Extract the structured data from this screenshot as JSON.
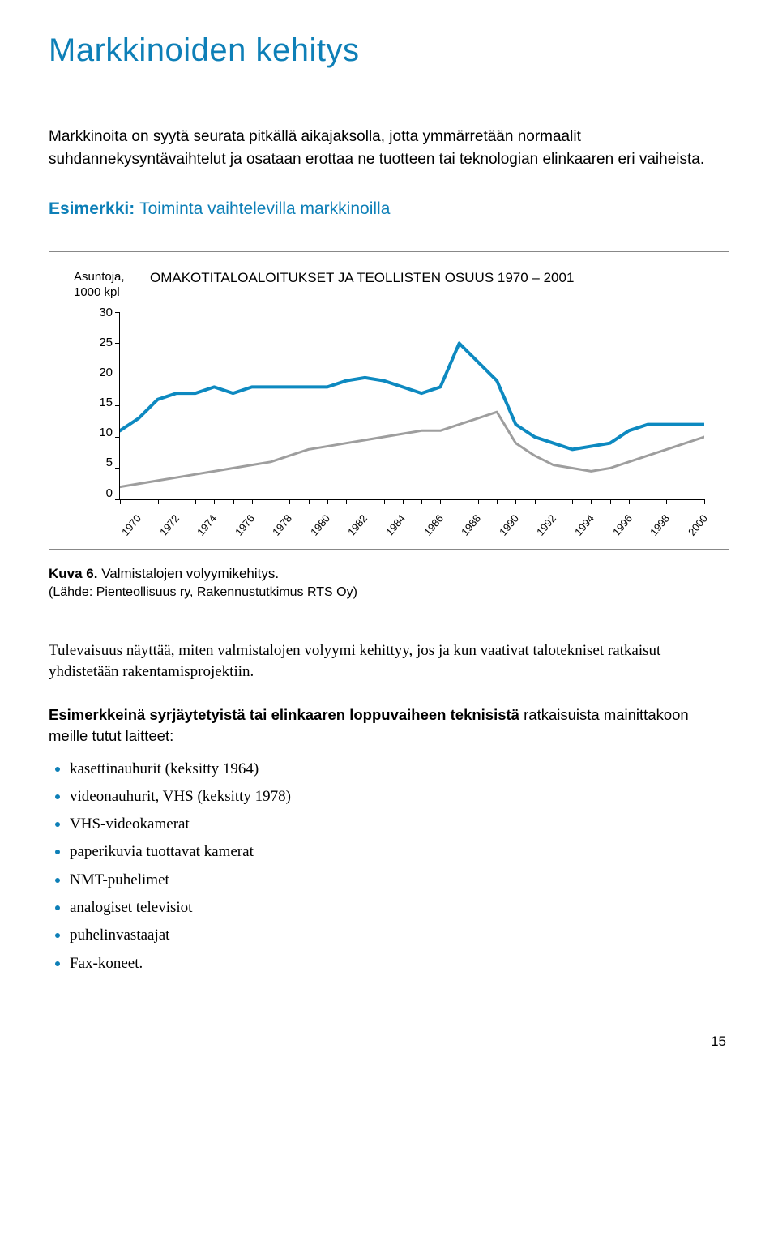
{
  "heading": "Markkinoiden kehitys",
  "intro": "Markkinoita on syytä seurata pitkällä aikajaksolla, jotta ymmärretään normaalit suhdannekysyntävaihtelut ja osataan erottaa ne tuotteen tai teknologian elinkaaren eri vaiheista.",
  "example": {
    "label": "Esimerkki:",
    "title": "Toiminta vaihtelevilla markkinoilla"
  },
  "chart": {
    "y_axis_label_l1": "Asuntoja,",
    "y_axis_label_l2": "1000 kpl",
    "title": "OMAKOTITALOALOITUKSET JA TEOLLISTEN OSUUS 1970 – 2001",
    "y_ticks": [
      "30",
      "25",
      "20",
      "15",
      "10",
      "5",
      "0"
    ],
    "ylim": [
      0,
      30
    ],
    "x_years": [
      1970,
      1972,
      1974,
      1976,
      1978,
      1980,
      1982,
      1984,
      1986,
      1988,
      1990,
      1992,
      1994,
      1996,
      1998,
      2000
    ],
    "series_a_color": "#0d89c0",
    "series_a_width": 4,
    "series_b_color": "#9e9e9e",
    "series_b_width": 3,
    "series_a": [
      {
        "x": 1970,
        "y": 11
      },
      {
        "x": 1971,
        "y": 13
      },
      {
        "x": 1972,
        "y": 16
      },
      {
        "x": 1973,
        "y": 17
      },
      {
        "x": 1974,
        "y": 17
      },
      {
        "x": 1975,
        "y": 18
      },
      {
        "x": 1976,
        "y": 17
      },
      {
        "x": 1977,
        "y": 18
      },
      {
        "x": 1978,
        "y": 18
      },
      {
        "x": 1979,
        "y": 18
      },
      {
        "x": 1980,
        "y": 18
      },
      {
        "x": 1981,
        "y": 18
      },
      {
        "x": 1982,
        "y": 19
      },
      {
        "x": 1983,
        "y": 19.5
      },
      {
        "x": 1984,
        "y": 19
      },
      {
        "x": 1985,
        "y": 18
      },
      {
        "x": 1986,
        "y": 17
      },
      {
        "x": 1987,
        "y": 18
      },
      {
        "x": 1988,
        "y": 25
      },
      {
        "x": 1989,
        "y": 22
      },
      {
        "x": 1990,
        "y": 19
      },
      {
        "x": 1991,
        "y": 12
      },
      {
        "x": 1992,
        "y": 10
      },
      {
        "x": 1993,
        "y": 9
      },
      {
        "x": 1994,
        "y": 8
      },
      {
        "x": 1995,
        "y": 8.5
      },
      {
        "x": 1996,
        "y": 9
      },
      {
        "x": 1997,
        "y": 11
      },
      {
        "x": 1998,
        "y": 12
      },
      {
        "x": 1999,
        "y": 12
      },
      {
        "x": 2000,
        "y": 12
      },
      {
        "x": 2001,
        "y": 12
      }
    ],
    "series_b": [
      {
        "x": 1970,
        "y": 2
      },
      {
        "x": 1971,
        "y": 2.5
      },
      {
        "x": 1972,
        "y": 3
      },
      {
        "x": 1973,
        "y": 3.5
      },
      {
        "x": 1974,
        "y": 4
      },
      {
        "x": 1975,
        "y": 4.5
      },
      {
        "x": 1976,
        "y": 5
      },
      {
        "x": 1977,
        "y": 5.5
      },
      {
        "x": 1978,
        "y": 6
      },
      {
        "x": 1979,
        "y": 7
      },
      {
        "x": 1980,
        "y": 8
      },
      {
        "x": 1981,
        "y": 8.5
      },
      {
        "x": 1982,
        "y": 9
      },
      {
        "x": 1983,
        "y": 9.5
      },
      {
        "x": 1984,
        "y": 10
      },
      {
        "x": 1985,
        "y": 10.5
      },
      {
        "x": 1986,
        "y": 11
      },
      {
        "x": 1987,
        "y": 11
      },
      {
        "x": 1988,
        "y": 12
      },
      {
        "x": 1989,
        "y": 13
      },
      {
        "x": 1990,
        "y": 14
      },
      {
        "x": 1991,
        "y": 9
      },
      {
        "x": 1992,
        "y": 7
      },
      {
        "x": 1993,
        "y": 5.5
      },
      {
        "x": 1994,
        "y": 5
      },
      {
        "x": 1995,
        "y": 4.5
      },
      {
        "x": 1996,
        "y": 5
      },
      {
        "x": 1997,
        "y": 6
      },
      {
        "x": 1998,
        "y": 7
      },
      {
        "x": 1999,
        "y": 8
      },
      {
        "x": 2000,
        "y": 9
      },
      {
        "x": 2001,
        "y": 10
      }
    ]
  },
  "caption_a": "Kuva 6.",
  "caption_b": " Valmistalojen volyymikehitys.",
  "source": "(Lähde: Pienteollisuus ry, Rakennustutkimus RTS Oy)",
  "body_para": "Tulevaisuus näyttää, miten valmistalojen volyymi kehittyy, jos ja kun vaativat talotekniset ratkaisut yhdistetään rakentamisprojektiin.",
  "list_intro_bold": "Esimerkkeinä syrjäytetyistä tai elinkaaren loppuvaiheen teknisistä",
  "list_intro_rest": " ratkaisuista mainittakoon meille tutut laitteet:",
  "bullets": [
    "kasettinauhurit (keksitty 1964)",
    "videonauhurit, VHS (keksitty 1978)",
    "VHS-videokamerat",
    "paperikuvia tuottavat kamerat",
    "NMT-puhelimet",
    "analogiset televisiot",
    "puhelinvastaajat",
    "Fax-koneet."
  ],
  "page_num": "15"
}
